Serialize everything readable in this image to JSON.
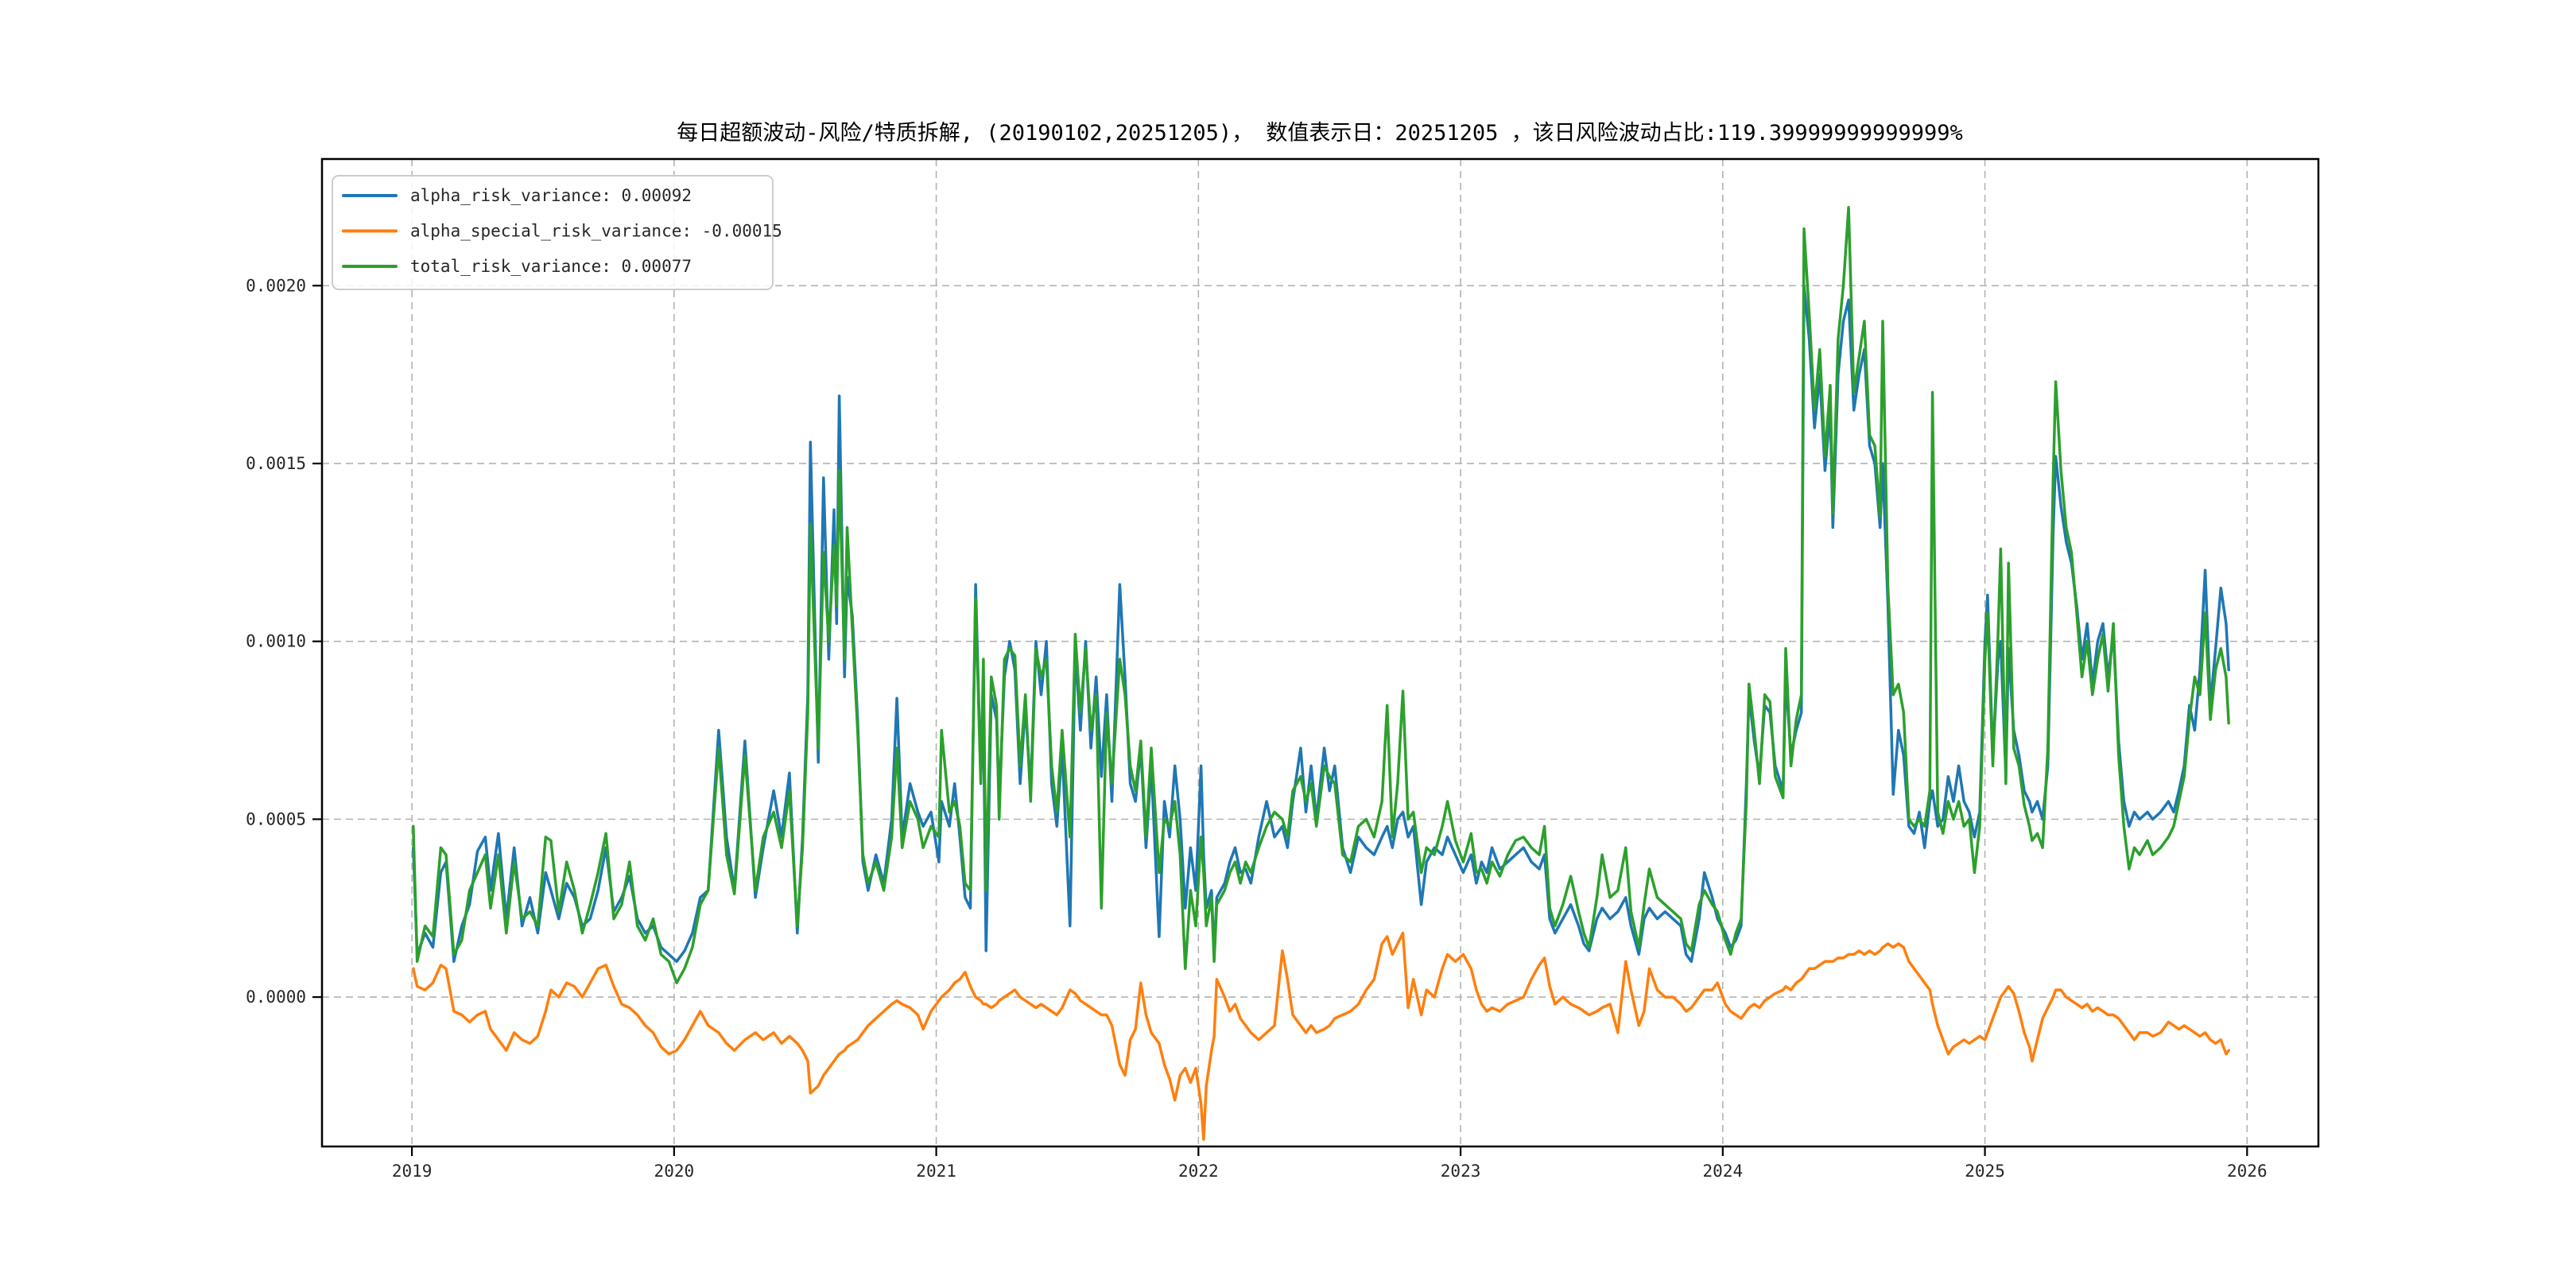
{
  "figure": {
    "title": "每日超额波动-风险/特质拆解, (20190102,20251205)，  数值表示日：20251205 ，该日风险波动占比:119.39999999999999%",
    "background_color": "#ffffff",
    "text_color": "#000000"
  },
  "legend": {
    "position": "upper-left",
    "entries": [
      {
        "label": "alpha_risk_variance: 0.00092",
        "color": "#1f77b4"
      },
      {
        "label": "alpha_special_risk_variance: -0.00015",
        "color": "#ff7f0e"
      },
      {
        "label": "total_risk_variance: 0.00077",
        "color": "#2ca02c"
      }
    ]
  },
  "chart_data": {
    "type": "line",
    "title": "每日超额波动-风险/特质拆解, (20190102,20251205)，  数值表示日：20251205 ，该日风险波动占比:119.39999999999999%",
    "xlabel": "",
    "ylabel": "",
    "grid": true,
    "grid_style": "dashed",
    "grid_color": "#b3b3b3",
    "legend_position": "upper-left",
    "date_range": [
      "20190102",
      "20251205"
    ],
    "value_display_date": "20251205",
    "risk_share_pct": "119.39999999999999%",
    "xlim": [
      2018.657,
      2026.272
    ],
    "ylim": [
      -0.00042,
      0.002356
    ],
    "x_ticks": [
      2019,
      2020,
      2021,
      2022,
      2023,
      2024,
      2025,
      2026
    ],
    "x_tick_labels": [
      "2019",
      "2020",
      "2021",
      "2022",
      "2023",
      "2024",
      "2025",
      "2026"
    ],
    "y_ticks": [
      0.0,
      0.0005,
      0.001,
      0.0015,
      0.002
    ],
    "y_tick_labels": [
      "0.0000",
      "0.0005",
      "0.0010",
      "0.0015",
      "0.0020"
    ],
    "value_unit": 1e-05,
    "value_unit_note": "series values below are in units of 1e-5; multiply by value_unit for absolute variance",
    "x": [
      2019.005,
      2019.02,
      2019.05,
      2019.08,
      2019.11,
      2019.13,
      2019.16,
      2019.19,
      2019.22,
      2019.25,
      2019.28,
      2019.3,
      2019.33,
      2019.36,
      2019.39,
      2019.42,
      2019.45,
      2019.48,
      2019.51,
      2019.53,
      2019.56,
      2019.59,
      2019.62,
      2019.65,
      2019.68,
      2019.71,
      2019.74,
      2019.77,
      2019.8,
      2019.83,
      2019.86,
      2019.89,
      2019.92,
      2019.95,
      2019.98,
      2020.01,
      2020.04,
      2020.07,
      2020.1,
      2020.13,
      2020.17,
      2020.2,
      2020.23,
      2020.27,
      2020.31,
      2020.34,
      2020.38,
      2020.41,
      2020.44,
      2020.47,
      2020.49,
      2020.51,
      2020.52,
      2020.55,
      2020.57,
      2020.59,
      2020.61,
      2020.62,
      2020.63,
      2020.65,
      2020.66,
      2020.68,
      2020.7,
      2020.72,
      2020.74,
      2020.77,
      2020.8,
      2020.83,
      2020.85,
      2020.87,
      2020.9,
      2020.93,
      2020.95,
      2020.98,
      2021.01,
      2021.02,
      2021.05,
      2021.07,
      2021.09,
      2021.11,
      2021.13,
      2021.15,
      2021.17,
      2021.18,
      2021.19,
      2021.21,
      2021.23,
      2021.24,
      2021.26,
      2021.28,
      2021.3,
      2021.32,
      2021.34,
      2021.36,
      2021.38,
      2021.4,
      2021.42,
      2021.44,
      2021.46,
      2021.48,
      2021.51,
      2021.53,
      2021.55,
      2021.57,
      2021.59,
      2021.61,
      2021.63,
      2021.65,
      2021.67,
      2021.7,
      2021.72,
      2021.74,
      2021.76,
      2021.78,
      2021.8,
      2021.82,
      2021.85,
      2021.87,
      2021.89,
      2021.91,
      2021.93,
      2021.95,
      2021.97,
      2021.99,
      2022.01,
      2022.02,
      2022.03,
      2022.05,
      2022.06,
      2022.07,
      2022.1,
      2022.12,
      2022.14,
      2022.16,
      2022.18,
      2022.2,
      2022.23,
      2022.26,
      2022.29,
      2022.32,
      2022.34,
      2022.36,
      2022.39,
      2022.41,
      2022.43,
      2022.45,
      2022.48,
      2022.5,
      2022.52,
      2022.55,
      2022.58,
      2022.61,
      2022.64,
      2022.67,
      2022.7,
      2022.72,
      2022.74,
      2022.76,
      2022.78,
      2022.8,
      2022.82,
      2022.85,
      2022.87,
      2022.9,
      2022.93,
      2022.95,
      2022.98,
      2023.01,
      2023.04,
      2023.06,
      2023.08,
      2023.1,
      2023.12,
      2023.15,
      2023.18,
      2023.21,
      2023.24,
      2023.27,
      2023.3,
      2023.32,
      2023.34,
      2023.36,
      2023.39,
      2023.42,
      2023.45,
      2023.47,
      2023.49,
      2023.52,
      2023.54,
      2023.57,
      2023.6,
      2023.63,
      2023.65,
      2023.68,
      2023.7,
      2023.72,
      2023.75,
      2023.78,
      2023.81,
      2023.84,
      2023.86,
      2023.88,
      2023.91,
      2023.93,
      2023.96,
      2023.98,
      2024.01,
      2024.03,
      2024.05,
      2024.07,
      2024.09,
      2024.1,
      2024.12,
      2024.14,
      2024.16,
      2024.18,
      2024.2,
      2024.23,
      2024.24,
      2024.26,
      2024.28,
      2024.3,
      2024.31,
      2024.33,
      2024.35,
      2024.37,
      2024.39,
      2024.41,
      2024.42,
      2024.44,
      2024.46,
      2024.48,
      2024.5,
      2024.52,
      2024.54,
      2024.56,
      2024.58,
      2024.6,
      2024.61,
      2024.63,
      2024.65,
      2024.67,
      2024.69,
      2024.71,
      2024.73,
      2024.75,
      2024.77,
      2024.79,
      2024.8,
      2024.82,
      2024.84,
      2024.86,
      2024.88,
      2024.9,
      2024.92,
      2024.94,
      2024.96,
      2024.98,
      2025.0,
      2025.01,
      2025.03,
      2025.05,
      2025.06,
      2025.08,
      2025.09,
      2025.11,
      2025.13,
      2025.15,
      2025.17,
      2025.18,
      2025.2,
      2025.22,
      2025.24,
      2025.26,
      2025.27,
      2025.29,
      2025.31,
      2025.33,
      2025.35,
      2025.37,
      2025.39,
      2025.41,
      2025.43,
      2025.45,
      2025.47,
      2025.49,
      2025.51,
      2025.53,
      2025.55,
      2025.57,
      2025.59,
      2025.62,
      2025.64,
      2025.67,
      2025.7,
      2025.72,
      2025.74,
      2025.76,
      2025.78,
      2025.8,
      2025.82,
      2025.84,
      2025.86,
      2025.88,
      2025.9,
      2025.92,
      2025.93
    ],
    "series": [
      {
        "name": "alpha_risk_variance",
        "color": "#1f77b4",
        "final_value": 0.00092,
        "values": [
          42,
          12,
          18,
          14,
          35,
          38,
          10,
          20,
          26,
          41,
          45,
          30,
          46,
          22,
          42,
          20,
          28,
          18,
          35,
          30,
          22,
          32,
          28,
          20,
          22,
          30,
          42,
          24,
          28,
          34,
          22,
          18,
          20,
          14,
          12,
          10,
          13,
          18,
          28,
          30,
          75,
          45,
          30,
          72,
          28,
          42,
          58,
          45,
          63,
          18,
          45,
          85,
          156,
          66,
          146,
          95,
          137,
          105,
          169,
          90,
          118,
          107,
          78,
          38,
          30,
          40,
          32,
          50,
          84,
          45,
          60,
          52,
          48,
          52,
          38,
          55,
          48,
          60,
          45,
          28,
          25,
          116,
          62,
          80,
          13,
          85,
          78,
          55,
          90,
          100,
          92,
          60,
          82,
          58,
          100,
          85,
          100,
          60,
          48,
          70,
          20,
          98,
          75,
          100,
          70,
          90,
          62,
          85,
          55,
          116,
          90,
          60,
          55,
          70,
          42,
          65,
          17,
          55,
          45,
          65,
          50,
          25,
          42,
          30,
          65,
          40,
          25,
          30,
          12,
          28,
          32,
          38,
          42,
          35,
          36,
          32,
          45,
          55,
          45,
          48,
          42,
          55,
          70,
          52,
          65,
          50,
          70,
          58,
          65,
          42,
          35,
          45,
          42,
          40,
          45,
          48,
          42,
          50,
          52,
          45,
          48,
          26,
          38,
          42,
          40,
          45,
          40,
          35,
          40,
          32,
          38,
          35,
          42,
          36,
          38,
          40,
          42,
          38,
          36,
          40,
          22,
          18,
          22,
          26,
          20,
          15,
          13,
          22,
          25,
          22,
          24,
          28,
          20,
          12,
          22,
          25,
          22,
          24,
          22,
          20,
          12,
          10,
          22,
          35,
          28,
          22,
          18,
          14,
          16,
          20,
          60,
          85,
          72,
          62,
          82,
          80,
          65,
          58,
          90,
          68,
          75,
          80,
          200,
          185,
          160,
          175,
          148,
          165,
          132,
          175,
          190,
          196,
          165,
          175,
          182,
          155,
          150,
          132,
          150,
          110,
          57,
          75,
          68,
          48,
          46,
          52,
          42,
          55,
          58,
          48,
          50,
          62,
          55,
          65,
          55,
          52,
          45,
          52,
          100,
          113,
          68,
          95,
          100,
          62,
          98,
          75,
          68,
          58,
          55,
          52,
          55,
          50,
          65,
          130,
          152,
          138,
          128,
          122,
          110,
          95,
          105,
          88,
          100,
          105,
          90,
          102,
          72,
          55,
          48,
          52,
          50,
          52,
          50,
          52,
          55,
          52,
          58,
          65,
          82,
          75,
          92,
          120,
          82,
          98,
          115,
          105,
          92
        ]
      },
      {
        "name": "alpha_special_risk_variance",
        "color": "#ff7f0e",
        "final_value": -0.00015,
        "values": [
          8,
          3,
          2,
          4,
          9,
          8,
          -4,
          -5,
          -7,
          -5,
          -4,
          -9,
          -12,
          -15,
          -10,
          -12,
          -13,
          -11,
          -4,
          2,
          0,
          4,
          3,
          0,
          4,
          8,
          9,
          3,
          -2,
          -3,
          -5,
          -8,
          -10,
          -14,
          -16,
          -15,
          -12,
          -8,
          -4,
          -8,
          -10,
          -13,
          -15,
          -12,
          -10,
          -12,
          -10,
          -13,
          -11,
          -13,
          -15,
          -18,
          -27,
          -25,
          -22,
          -20,
          -18,
          -17,
          -16,
          -15,
          -14,
          -13,
          -12,
          -10,
          -8,
          -6,
          -4,
          -2,
          -1,
          -2,
          -3,
          -5,
          -9,
          -4,
          -1,
          0,
          2,
          4,
          5,
          7,
          3,
          0,
          -1,
          -2,
          -2,
          -3,
          -2,
          -1,
          0,
          1,
          2,
          0,
          -1,
          -2,
          -3,
          -2,
          -3,
          -4,
          -5,
          -3,
          2,
          1,
          -1,
          -2,
          -3,
          -4,
          -5,
          -5,
          -8,
          -19,
          -22,
          -12,
          -9,
          4,
          -5,
          -10,
          -13,
          -19,
          -23,
          -29,
          -22,
          -20,
          -24,
          -20,
          -30,
          -40,
          -25,
          -15,
          -11,
          5,
          0,
          -4,
          -2,
          -6,
          -8,
          -10,
          -12,
          -10,
          -8,
          13,
          5,
          -5,
          -8,
          -10,
          -8,
          -10,
          -9,
          -8,
          -6,
          -5,
          -4,
          -2,
          2,
          5,
          15,
          17,
          12,
          15,
          18,
          -3,
          5,
          -5,
          2,
          0,
          8,
          12,
          10,
          12,
          8,
          2,
          -2,
          -4,
          -3,
          -4,
          -2,
          -1,
          0,
          5,
          9,
          11,
          3,
          -2,
          0,
          -2,
          -3,
          -4,
          -5,
          -4,
          -3,
          -2,
          -10,
          10,
          2,
          -8,
          -4,
          8,
          2,
          0,
          0,
          -2,
          -4,
          -3,
          0,
          2,
          2,
          4,
          -2,
          -4,
          -5,
          -6,
          -4,
          -3,
          -2,
          -3,
          -1,
          0,
          1,
          2,
          3,
          2,
          4,
          5,
          6,
          8,
          8,
          9,
          10,
          10,
          10,
          11,
          11,
          12,
          12,
          13,
          12,
          13,
          12,
          13,
          14,
          15,
          14,
          15,
          14,
          10,
          8,
          6,
          4,
          2,
          -2,
          -8,
          -12,
          -16,
          -14,
          -13,
          -12,
          -13,
          -12,
          -11,
          -12,
          -10,
          -6,
          -2,
          0,
          2,
          3,
          1,
          -4,
          -10,
          -14,
          -18,
          -12,
          -6,
          -3,
          0,
          2,
          2,
          0,
          -1,
          -2,
          -3,
          -2,
          -4,
          -3,
          -4,
          -5,
          -5,
          -6,
          -8,
          -10,
          -12,
          -10,
          -10,
          -11,
          -10,
          -7,
          -8,
          -9,
          -8,
          -9,
          -10,
          -11,
          -10,
          -12,
          -13,
          -12,
          -16,
          -15
        ]
      },
      {
        "name": "total_risk_variance",
        "color": "#2ca02c",
        "final_value": 0.00077,
        "values": [
          48,
          10,
          20,
          17,
          42,
          40,
          12,
          16,
          30,
          35,
          40,
          25,
          40,
          18,
          38,
          22,
          24,
          20,
          45,
          44,
          24,
          38,
          30,
          18,
          26,
          35,
          46,
          22,
          26,
          38,
          20,
          16,
          22,
          12,
          10,
          4,
          8,
          14,
          26,
          30,
          70,
          40,
          29,
          68,
          30,
          45,
          52,
          42,
          58,
          20,
          42,
          80,
          133,
          70,
          125,
          100,
          127,
          110,
          148,
          95,
          132,
          103,
          75,
          40,
          32,
          38,
          30,
          45,
          70,
          42,
          55,
          50,
          42,
          48,
          45,
          75,
          52,
          55,
          48,
          32,
          30,
          112,
          60,
          95,
          30,
          90,
          82,
          50,
          95,
          98,
          96,
          65,
          85,
          55,
          98,
          90,
          95,
          65,
          52,
          75,
          45,
          102,
          80,
          98,
          75,
          85,
          25,
          80,
          60,
          95,
          85,
          65,
          58,
          72,
          45,
          70,
          35,
          50,
          48,
          55,
          40,
          8,
          30,
          20,
          45,
          35,
          20,
          28,
          10,
          26,
          30,
          35,
          38,
          32,
          38,
          35,
          42,
          48,
          52,
          50,
          45,
          58,
          62,
          55,
          60,
          48,
          65,
          62,
          60,
          40,
          38,
          48,
          50,
          45,
          55,
          82,
          45,
          60,
          86,
          50,
          52,
          35,
          42,
          40,
          48,
          55,
          44,
          38,
          46,
          35,
          36,
          32,
          38,
          34,
          40,
          44,
          45,
          42,
          40,
          48,
          25,
          20,
          26,
          34,
          24,
          18,
          14,
          28,
          40,
          28,
          30,
          42,
          24,
          14,
          26,
          36,
          28,
          26,
          24,
          22,
          15,
          13,
          26,
          30,
          26,
          24,
          16,
          12,
          18,
          22,
          55,
          88,
          75,
          60,
          85,
          83,
          62,
          56,
          98,
          65,
          78,
          85,
          216,
          192,
          165,
          182,
          152,
          172,
          136,
          185,
          200,
          222,
          170,
          180,
          190,
          158,
          155,
          135,
          190,
          115,
          85,
          88,
          80,
          50,
          48,
          50,
          48,
          58,
          170,
          52,
          46,
          55,
          50,
          55,
          48,
          50,
          35,
          48,
          95,
          108,
          65,
          102,
          126,
          60,
          122,
          70,
          65,
          54,
          48,
          44,
          46,
          42,
          70,
          145,
          173,
          148,
          132,
          125,
          108,
          90,
          100,
          85,
          95,
          102,
          86,
          105,
          68,
          48,
          36,
          42,
          40,
          44,
          40,
          42,
          45,
          48,
          55,
          62,
          78,
          90,
          85,
          108,
          78,
          92,
          98,
          90,
          77
        ]
      }
    ]
  }
}
